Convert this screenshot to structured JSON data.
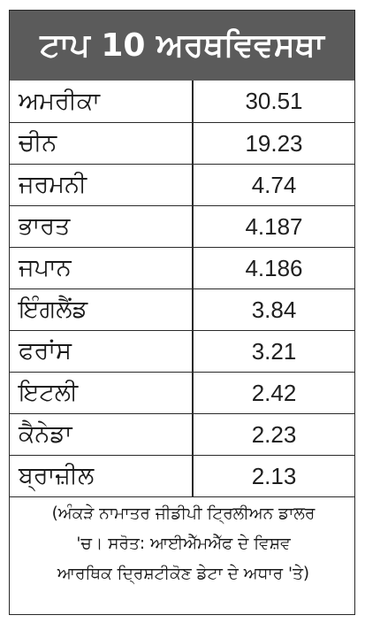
{
  "title": "ਟਾਪ 10 ਅਰਥਵਿਵਸਥਾ",
  "rows": [
    {
      "country": "ਅਮਰੀਕਾ",
      "value": "30.51"
    },
    {
      "country": "ਚੀਨ",
      "value": "19.23"
    },
    {
      "country": "ਜਰਮਨੀ",
      "value": "4.74"
    },
    {
      "country": "ਭਾਰਤ",
      "value": "4.187"
    },
    {
      "country": "ਜਪਾਨ",
      "value": "4.186"
    },
    {
      "country": "ਇੰਗਲੈਂਡ",
      "value": "3.84"
    },
    {
      "country": "ਫਰਾਂਸ",
      "value": "3.21"
    },
    {
      "country": "ਇਟਲੀ",
      "value": "2.42"
    },
    {
      "country": "ਕੈਨੇਡਾ",
      "value": "2.23"
    },
    {
      "country": "ਬ੍ਰਾਜ਼ੀਲ",
      "value": "2.13"
    }
  ],
  "note": {
    "line1": "(ਅੰਕੜੇ ਨਾਮਾਤਰ ਜੀਡੀਪੀ ਟ੍ਰਿਲੀਅਨ ਡਾਲਰ",
    "line2": "'ਚ। ਸਰੋਤ: ਆਈਐੱਮਐੱਫ ਦੇ ਵਿਸ਼ਵ",
    "line3": "ਆਰਥਿਕ ਦ੍ਰਿਸ਼ਟੀਕੋਣ ਡੇਟਾ ਦੇ ਅਧਾਰ 'ਤੇ)"
  },
  "colors": {
    "title_bg": "#5b5b5b",
    "title_text": "#ffffff",
    "border": "#2a2a2a"
  }
}
